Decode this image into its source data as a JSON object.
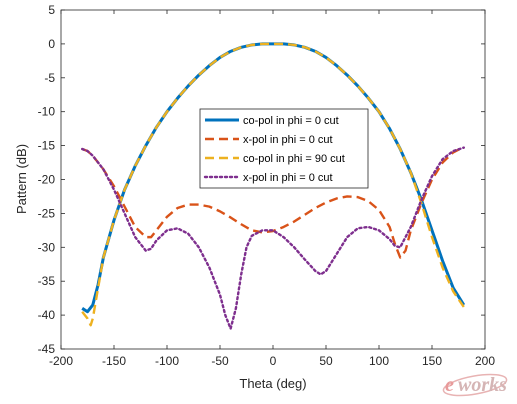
{
  "chart_data": {
    "type": "line",
    "title": "",
    "xlabel": "Theta (deg)",
    "ylabel": "Pattern (dB)",
    "xlim": [
      -200,
      200
    ],
    "ylim": [
      -45,
      5
    ],
    "xticks": [
      -200,
      -150,
      -100,
      -50,
      0,
      50,
      100,
      150,
      200
    ],
    "yticks": [
      5,
      0,
      -5,
      -10,
      -15,
      -20,
      -25,
      -30,
      -35,
      -40,
      -45
    ],
    "grid": false,
    "legend_position": "center",
    "series": [
      {
        "name": "co-pol in phi = 0 cut",
        "color": "#0072BD",
        "style": "solid",
        "points": [
          [
            -180,
            -39
          ],
          [
            -175,
            -39.5
          ],
          [
            -170,
            -38.5
          ],
          [
            -165,
            -35.5
          ],
          [
            -160,
            -31.5
          ],
          [
            -150,
            -26
          ],
          [
            -140,
            -21.5
          ],
          [
            -130,
            -18
          ],
          [
            -120,
            -15
          ],
          [
            -110,
            -12.3
          ],
          [
            -100,
            -10
          ],
          [
            -90,
            -8
          ],
          [
            -80,
            -6.2
          ],
          [
            -70,
            -4.6
          ],
          [
            -60,
            -3.2
          ],
          [
            -50,
            -2
          ],
          [
            -40,
            -1.1
          ],
          [
            -30,
            -0.5
          ],
          [
            -20,
            -0.15
          ],
          [
            -10,
            0
          ],
          [
            0,
            0
          ],
          [
            10,
            0
          ],
          [
            20,
            -0.15
          ],
          [
            30,
            -0.5
          ],
          [
            40,
            -1.1
          ],
          [
            50,
            -2
          ],
          [
            60,
            -3.2
          ],
          [
            70,
            -4.6
          ],
          [
            80,
            -6.2
          ],
          [
            90,
            -8
          ],
          [
            100,
            -10
          ],
          [
            110,
            -12.5
          ],
          [
            120,
            -15.5
          ],
          [
            130,
            -19
          ],
          [
            140,
            -23
          ],
          [
            150,
            -27.5
          ],
          [
            160,
            -32
          ],
          [
            170,
            -36
          ],
          [
            180,
            -38.5
          ]
        ]
      },
      {
        "name": "x-pol in phi = 0 cut",
        "color": "#D95319",
        "style": "dashed",
        "points": [
          [
            -180,
            -15.5
          ],
          [
            -175,
            -15.8
          ],
          [
            -170,
            -16.5
          ],
          [
            -160,
            -18.5
          ],
          [
            -150,
            -21
          ],
          [
            -140,
            -24
          ],
          [
            -130,
            -27
          ],
          [
            -120,
            -28.5
          ],
          [
            -115,
            -28.5
          ],
          [
            -110,
            -27.5
          ],
          [
            -100,
            -25.5
          ],
          [
            -90,
            -24.2
          ],
          [
            -80,
            -23.7
          ],
          [
            -70,
            -23.7
          ],
          [
            -60,
            -24
          ],
          [
            -50,
            -24.7
          ],
          [
            -40,
            -25.6
          ],
          [
            -30,
            -26.6
          ],
          [
            -20,
            -27.5
          ],
          [
            -10,
            -27.8
          ],
          [
            0,
            -27.6
          ],
          [
            10,
            -27
          ],
          [
            20,
            -26.2
          ],
          [
            30,
            -25.2
          ],
          [
            40,
            -24.2
          ],
          [
            50,
            -23.4
          ],
          [
            60,
            -22.8
          ],
          [
            70,
            -22.5
          ],
          [
            80,
            -22.6
          ],
          [
            90,
            -23.2
          ],
          [
            100,
            -24.5
          ],
          [
            110,
            -27
          ],
          [
            115,
            -29.5
          ],
          [
            120,
            -31.5
          ],
          [
            125,
            -30.5
          ],
          [
            130,
            -27.5
          ],
          [
            140,
            -23.5
          ],
          [
            150,
            -20
          ],
          [
            160,
            -17.5
          ],
          [
            170,
            -16
          ],
          [
            175,
            -15.6
          ],
          [
            180,
            -15.5
          ]
        ]
      },
      {
        "name": "co-pol in phi = 90 cut",
        "color": "#EDB120",
        "style": "dashed",
        "points": [
          [
            -180,
            -39.5
          ],
          [
            -175,
            -40.5
          ],
          [
            -172,
            -41.5
          ],
          [
            -170,
            -40.5
          ],
          [
            -165,
            -36
          ],
          [
            -160,
            -31.5
          ],
          [
            -150,
            -26
          ],
          [
            -140,
            -21.5
          ],
          [
            -130,
            -18
          ],
          [
            -120,
            -15
          ],
          [
            -110,
            -12.3
          ],
          [
            -100,
            -10
          ],
          [
            -90,
            -8
          ],
          [
            -80,
            -6.2
          ],
          [
            -70,
            -4.6
          ],
          [
            -60,
            -3.2
          ],
          [
            -50,
            -2
          ],
          [
            -40,
            -1.1
          ],
          [
            -30,
            -0.5
          ],
          [
            -20,
            -0.15
          ],
          [
            -10,
            0
          ],
          [
            0,
            0
          ],
          [
            10,
            0
          ],
          [
            20,
            -0.15
          ],
          [
            30,
            -0.5
          ],
          [
            40,
            -1.1
          ],
          [
            50,
            -2
          ],
          [
            60,
            -3.2
          ],
          [
            70,
            -4.6
          ],
          [
            80,
            -6.2
          ],
          [
            90,
            -8
          ],
          [
            100,
            -10
          ],
          [
            110,
            -12.5
          ],
          [
            120,
            -15.5
          ],
          [
            130,
            -19
          ],
          [
            140,
            -23.5
          ],
          [
            150,
            -28.5
          ],
          [
            160,
            -33
          ],
          [
            170,
            -36.5
          ],
          [
            180,
            -38.8
          ]
        ]
      },
      {
        "name": "x-pol in phi = 0 cut",
        "color": "#7E2F8E",
        "style": "dotted",
        "points": [
          [
            -180,
            -15.5
          ],
          [
            -175,
            -15.8
          ],
          [
            -170,
            -16.5
          ],
          [
            -160,
            -18.5
          ],
          [
            -150,
            -21.5
          ],
          [
            -140,
            -25
          ],
          [
            -130,
            -28.5
          ],
          [
            -120,
            -30.5
          ],
          [
            -115,
            -30.2
          ],
          [
            -110,
            -29
          ],
          [
            -100,
            -27.5
          ],
          [
            -90,
            -27.2
          ],
          [
            -80,
            -28
          ],
          [
            -70,
            -30
          ],
          [
            -60,
            -33
          ],
          [
            -50,
            -37
          ],
          [
            -45,
            -40
          ],
          [
            -40,
            -42
          ],
          [
            -35,
            -39
          ],
          [
            -30,
            -34
          ],
          [
            -25,
            -30
          ],
          [
            -20,
            -28.3
          ],
          [
            -10,
            -27.5
          ],
          [
            0,
            -27.5
          ],
          [
            10,
            -28.5
          ],
          [
            20,
            -30
          ],
          [
            30,
            -31.8
          ],
          [
            40,
            -33.5
          ],
          [
            45,
            -34
          ],
          [
            50,
            -33.5
          ],
          [
            60,
            -31
          ],
          [
            70,
            -28.5
          ],
          [
            80,
            -27.2
          ],
          [
            90,
            -27
          ],
          [
            100,
            -27.5
          ],
          [
            110,
            -28.8
          ],
          [
            115,
            -29.8
          ],
          [
            120,
            -30
          ],
          [
            130,
            -27
          ],
          [
            140,
            -23
          ],
          [
            150,
            -19.5
          ],
          [
            160,
            -17
          ],
          [
            170,
            -15.8
          ],
          [
            180,
            -15.3
          ]
        ]
      }
    ]
  },
  "watermark": {
    "letter": "e",
    "text": "works"
  }
}
